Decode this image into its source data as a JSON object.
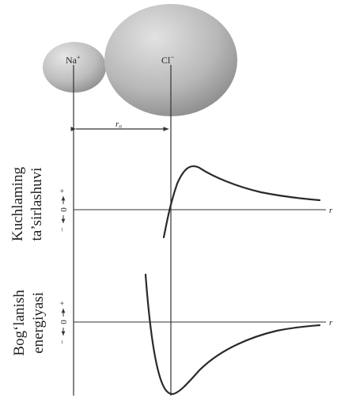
{
  "ions": [
    {
      "symbol": "Na",
      "charge": "+"
    },
    {
      "symbol": "Cl",
      "charge": "−"
    }
  ],
  "distance_label": "r₀",
  "axis_variable": "r",
  "panels": [
    {
      "title_line1": "Kuchlaming",
      "title_line2": "ta’sirlashuvi",
      "zero_label": "0"
    },
    {
      "title_line1": "Bog‘lanish",
      "title_line2": "energiyasi",
      "zero_label": "0"
    }
  ],
  "colors": {
    "line": "#333333",
    "ion_light": "#d8d8d8",
    "ion_dark": "#8e8e8e"
  }
}
